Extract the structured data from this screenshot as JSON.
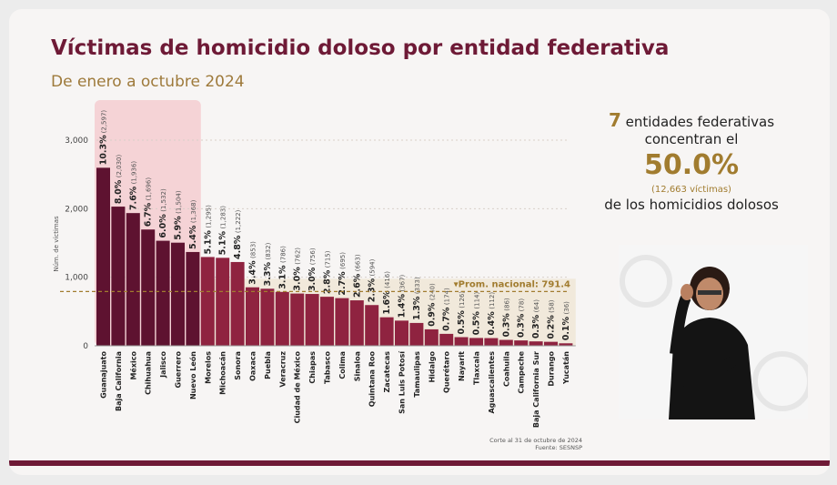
{
  "chart_data": {
    "type": "bar",
    "title": "Víctimas de homicidio doloso por entidad federativa",
    "subtitle": "De enero a octubre 2024",
    "ylabel": "Núm. de víctimas",
    "ylim": [
      0,
      3000
    ],
    "yticks": [
      "0",
      "1,000",
      "2,000",
      "3,000"
    ],
    "categories": [
      "Guanajuato",
      "Baja California",
      "México",
      "Chihuahua",
      "Jalisco",
      "Guerrero",
      "Nuevo León",
      "Morelos",
      "Michoacán",
      "Sonora",
      "Oaxaca",
      "Puebla",
      "Veracruz",
      "Ciudad de México",
      "Chiapas",
      "Tabasco",
      "Colima",
      "Sinaloa",
      "Quintana Roo",
      "Zacatecas",
      "San Luis Potosí",
      "Tamaulipas",
      "Hidalgo",
      "Querétaro",
      "Nayarit",
      "Tlaxcala",
      "Aguascalientes",
      "Coahuila",
      "Campeche",
      "Baja California Sur",
      "Durango",
      "Yucatán"
    ],
    "values": [
      2597,
      2030,
      1936,
      1696,
      1532,
      1504,
      1368,
      1295,
      1283,
      1222,
      853,
      832,
      786,
      762,
      756,
      715,
      695,
      663,
      594,
      416,
      367,
      333,
      240,
      174,
      126,
      114,
      112,
      86,
      78,
      64,
      58,
      36
    ],
    "percent_labels": [
      "10.3%",
      "8.0%",
      "7.6%",
      "6.7%",
      "6.0%",
      "5.9%",
      "5.4%",
      "5.1%",
      "5.1%",
      "4.8%",
      "3.4%",
      "3.3%",
      "3.1%",
      "3.0%",
      "3.0%",
      "2.8%",
      "2.7%",
      "2.6%",
      "2.3%",
      "1.6%",
      "1.4%",
      "1.3%",
      "0.9%",
      "0.7%",
      "0.5%",
      "0.5%",
      "0.4%",
      "0.3%",
      "0.3%",
      "0.3%",
      "0.2%",
      "0.1%"
    ],
    "count_labels": [
      "(2,597)",
      "(2,030)",
      "(1,936)",
      "(1,696)",
      "(1,532)",
      "(1,504)",
      "(1,368)",
      "(1,295)",
      "(1,283)",
      "(1,222)",
      "(853)",
      "(832)",
      "(786)",
      "(762)",
      "(756)",
      "(715)",
      "(695)",
      "(663)",
      "(594)",
      "(416)",
      "(367)",
      "(333)",
      "(240)",
      "(174)",
      "(126)",
      "(114)",
      "(112)",
      "(86)",
      "(78)",
      "(64)",
      "(58)",
      "(36)"
    ],
    "highlighted_count": 7,
    "average_line": {
      "value": 791.4,
      "label": "▾Prom. nacional: 791.4"
    },
    "grid": true,
    "colors": {
      "highlight": "#5e1230",
      "bar": "#8f2340",
      "highlight_bg": "#f5d3d6",
      "average": "#a17c2f",
      "average_bg": "#efe6d4"
    }
  },
  "panel": {
    "line1_number": "7",
    "line1_text": " entidades federativas",
    "line2": "concentran el",
    "percent": "50.0%",
    "victims": "(12,663  víctimas)",
    "line5": "de los homicidios dolosos"
  },
  "footnote": {
    "line1": "Corte al 31 de octubre de 2024",
    "line2": "Fuente: SESNSP"
  }
}
